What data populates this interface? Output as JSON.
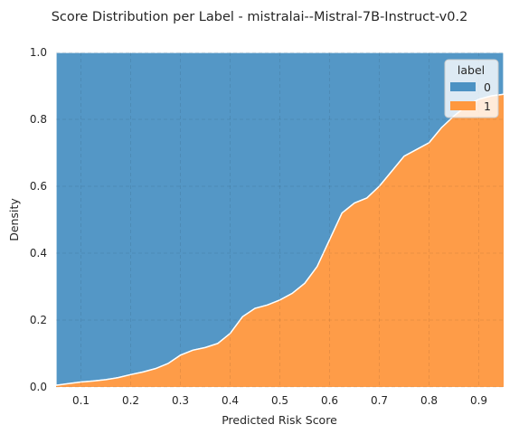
{
  "chart_data": {
    "type": "area",
    "stacked": "fill",
    "title": "Score Distribution per Label - mistralai--Mistral-7B-Instruct-v0.2",
    "xlabel": "Predicted Risk Score",
    "ylabel": "Density",
    "xlim": [
      0.05,
      0.95
    ],
    "ylim": [
      0.0,
      1.0
    ],
    "x_ticks": [
      "0.1",
      "0.2",
      "0.3",
      "0.4",
      "0.5",
      "0.6",
      "0.7",
      "0.8",
      "0.9"
    ],
    "y_ticks": [
      "0.0",
      "0.2",
      "0.4",
      "0.6",
      "0.8",
      "1.0"
    ],
    "grid": true,
    "legend": {
      "title": "label",
      "placement": "top-right"
    },
    "x": [
      0.05,
      0.075,
      0.1,
      0.125,
      0.15,
      0.175,
      0.2,
      0.225,
      0.25,
      0.275,
      0.3,
      0.325,
      0.35,
      0.375,
      0.4,
      0.425,
      0.45,
      0.475,
      0.5,
      0.525,
      0.55,
      0.575,
      0.6,
      0.625,
      0.65,
      0.675,
      0.7,
      0.725,
      0.75,
      0.775,
      0.8,
      0.825,
      0.85,
      0.875,
      0.9,
      0.925,
      0.95
    ],
    "series": [
      {
        "name": "0",
        "color": "#4c92c3",
        "values": [
          0.995,
          0.99,
          0.985,
          0.982,
          0.978,
          0.972,
          0.963,
          0.955,
          0.945,
          0.93,
          0.905,
          0.89,
          0.882,
          0.87,
          0.84,
          0.79,
          0.765,
          0.755,
          0.74,
          0.72,
          0.69,
          0.64,
          0.56,
          0.48,
          0.45,
          0.435,
          0.4,
          0.355,
          0.31,
          0.29,
          0.27,
          0.225,
          0.19,
          0.16,
          0.14,
          0.13,
          0.125
        ]
      },
      {
        "name": "1",
        "color": "#ff983e",
        "values": [
          0.005,
          0.01,
          0.015,
          0.018,
          0.022,
          0.028,
          0.037,
          0.045,
          0.055,
          0.07,
          0.095,
          0.11,
          0.118,
          0.13,
          0.16,
          0.21,
          0.235,
          0.245,
          0.26,
          0.28,
          0.31,
          0.36,
          0.44,
          0.52,
          0.55,
          0.565,
          0.6,
          0.645,
          0.69,
          0.71,
          0.73,
          0.775,
          0.81,
          0.84,
          0.86,
          0.87,
          0.875
        ]
      }
    ]
  }
}
